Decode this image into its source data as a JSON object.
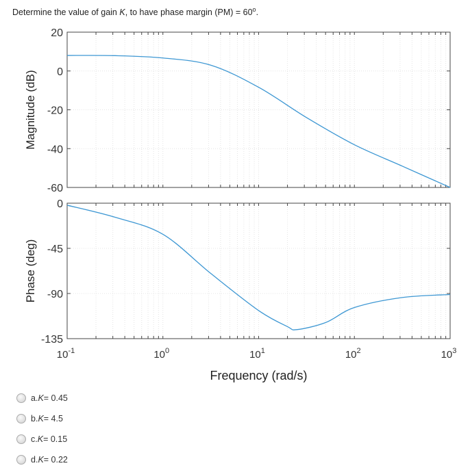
{
  "question": {
    "text": "Determine the value of gain K, to have phase margin (PM) = 60",
    "prefix": "Determine the value of gain ",
    "var": "K",
    "suffix": ", to have phase margin (PM) = 60",
    "sup": "o",
    "end": "."
  },
  "chart_data": [
    {
      "type": "line",
      "xscale": "log",
      "xlim": [
        0.1,
        1000
      ],
      "ylim": [
        -60,
        20
      ],
      "ylabel": "Magnitude (dB)",
      "yticks": [
        "20",
        "0",
        "-20",
        "-40",
        "-60"
      ],
      "ytick_values": [
        20,
        0,
        -20,
        -40,
        -60
      ],
      "grid": true,
      "color": "#3d97d3",
      "x": [
        0.1,
        0.316,
        1,
        3.16,
        10,
        31.6,
        100,
        316,
        1000
      ],
      "values": [
        8,
        7.9,
        6.7,
        3,
        -8.4,
        -24,
        -38,
        -49,
        -60
      ]
    },
    {
      "type": "line",
      "xscale": "log",
      "xlim": [
        0.1,
        1000
      ],
      "ylim": [
        -135,
        0
      ],
      "ylabel": "Phase (deg)",
      "xlabel": "Frequency  (rad/s)",
      "yticks": [
        "0",
        "-45",
        "-90",
        "-135"
      ],
      "ytick_values": [
        0,
        -45,
        -90,
        -135
      ],
      "xticks": [
        {
          "base": "10",
          "exp": "-1"
        },
        {
          "base": "10",
          "exp": "0"
        },
        {
          "base": "10",
          "exp": "1"
        },
        {
          "base": "10",
          "exp": "2"
        },
        {
          "base": "10",
          "exp": "3"
        }
      ],
      "xtick_values": [
        0.1,
        1,
        10,
        100,
        1000
      ],
      "grid": true,
      "color": "#3d97d3",
      "x": [
        0.1,
        0.316,
        1,
        3.16,
        10,
        20,
        25,
        50,
        100,
        316,
        1000
      ],
      "values": [
        -2,
        -14,
        -31,
        -70,
        -107,
        -123,
        -126,
        -119,
        -104,
        -94,
        -91
      ]
    }
  ],
  "options": [
    {
      "letter": "a. ",
      "var": "K",
      "value": " = 0.45"
    },
    {
      "letter": "b. ",
      "var": "K",
      "value": " = 4.5"
    },
    {
      "letter": "c. ",
      "var": "K",
      "value": " = 0.15"
    },
    {
      "letter": "d. ",
      "var": "K",
      "value": " = 0.22"
    }
  ]
}
